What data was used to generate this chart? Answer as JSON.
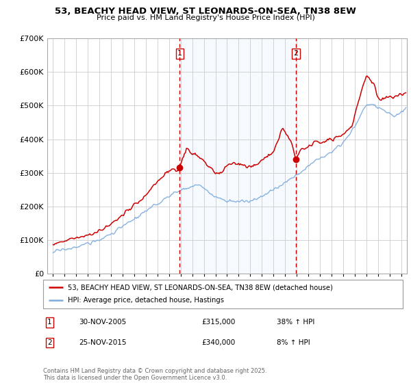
{
  "title": "53, BEACHY HEAD VIEW, ST LEONARDS-ON-SEA, TN38 8EW",
  "subtitle": "Price paid vs. HM Land Registry's House Price Index (HPI)",
  "legend_label_red": "53, BEACHY HEAD VIEW, ST LEONARDS-ON-SEA, TN38 8EW (detached house)",
  "legend_label_blue": "HPI: Average price, detached house, Hastings",
  "footer": "Contains HM Land Registry data © Crown copyright and database right 2025.\nThis data is licensed under the Open Government Licence v3.0.",
  "sale1_label": "1",
  "sale1_date": "30-NOV-2005",
  "sale1_price": "£315,000",
  "sale1_hpi": "38% ↑ HPI",
  "sale2_label": "2",
  "sale2_date": "25-NOV-2015",
  "sale2_price": "£340,000",
  "sale2_hpi": "8% ↑ HPI",
  "vline1_x": 2005.92,
  "vline2_x": 2015.92,
  "marker1_y_red": 315000,
  "marker2_y_red": 340000,
  "ylim": [
    0,
    700000
  ],
  "xlim_start": 1994.5,
  "xlim_end": 2025.5,
  "color_red": "#cc0000",
  "color_blue": "#7aaadd",
  "color_vline": "#cc0000",
  "shade_color": "#ddeeff",
  "background_color": "#ffffff",
  "grid_color": "#cccccc"
}
